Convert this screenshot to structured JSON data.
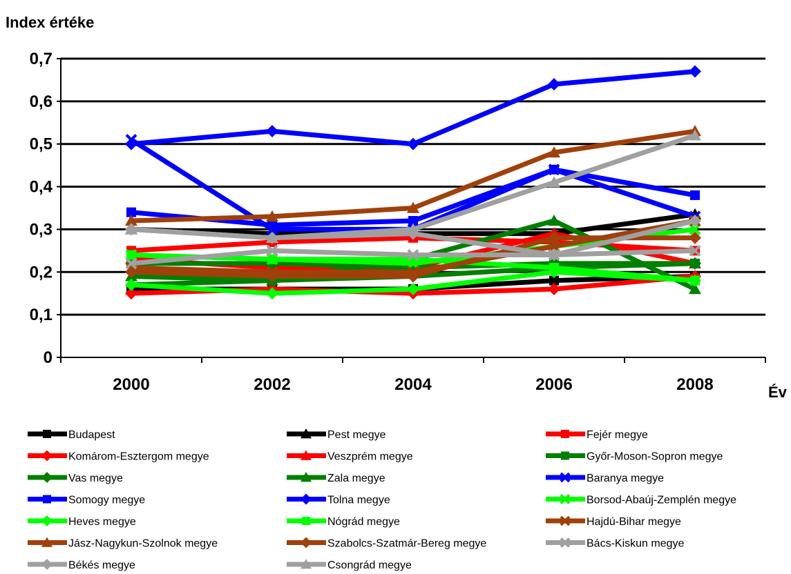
{
  "chart_data": {
    "type": "line",
    "ylabel": "Index értéke",
    "xlabel": "Év",
    "x": [
      "2000",
      "2002",
      "2004",
      "2006",
      "2008"
    ],
    "ylim": [
      0,
      0.7
    ],
    "yticks": [
      "0",
      "0,1",
      "0,2",
      "0,3",
      "0,4",
      "0,5",
      "0,6",
      "0,7"
    ],
    "grid": true,
    "legend_position": "bottom",
    "series": [
      {
        "name": "Budapest",
        "color": "#000000",
        "marker": "square",
        "values": [
          0.16,
          0.16,
          0.16,
          0.18,
          0.19
        ]
      },
      {
        "name": "Pest megye",
        "color": "#000000",
        "marker": "triangle",
        "values": [
          0.3,
          0.29,
          0.29,
          0.29,
          0.335
        ]
      },
      {
        "name": "Fejér megye",
        "color": "#ff0000",
        "marker": "square",
        "values": [
          0.25,
          0.27,
          0.28,
          0.27,
          0.25
        ]
      },
      {
        "name": "Komárom-Esztergom megye",
        "color": "#ff0000",
        "marker": "diamond",
        "values": [
          0.15,
          0.16,
          0.15,
          0.16,
          0.19
        ]
      },
      {
        "name": "Veszprém megye",
        "color": "#ff0000",
        "marker": "triangle",
        "values": [
          0.23,
          0.21,
          0.21,
          0.29,
          0.22
        ]
      },
      {
        "name": "Győr-Moson-Sopron megye",
        "color": "#008000",
        "marker": "square",
        "values": [
          0.22,
          0.22,
          0.21,
          0.22,
          0.22
        ]
      },
      {
        "name": "Vas megye",
        "color": "#008000",
        "marker": "diamond",
        "values": [
          0.17,
          0.18,
          0.19,
          0.21,
          0.22
        ]
      },
      {
        "name": "Zala megye",
        "color": "#008000",
        "marker": "triangle",
        "values": [
          0.19,
          0.18,
          0.23,
          0.32,
          0.16
        ]
      },
      {
        "name": "Baranya megye",
        "color": "#0000ff",
        "marker": "x",
        "values": [
          0.51,
          0.3,
          0.3,
          0.44,
          0.33
        ]
      },
      {
        "name": "Somogy megye",
        "color": "#0000ff",
        "marker": "square",
        "values": [
          0.34,
          0.31,
          0.32,
          0.44,
          0.38
        ]
      },
      {
        "name": "Tolna megye",
        "color": "#0000ff",
        "marker": "diamond",
        "values": [
          0.5,
          0.53,
          0.5,
          0.64,
          0.67
        ]
      },
      {
        "name": "Borsod-Abaúj-Zemplén megye",
        "color": "#00ff00",
        "marker": "x",
        "values": [
          0.24,
          0.23,
          0.22,
          0.26,
          0.3
        ]
      },
      {
        "name": "Heves megye",
        "color": "#00ff00",
        "marker": "diamond",
        "values": [
          0.17,
          0.15,
          0.16,
          0.2,
          0.18
        ]
      },
      {
        "name": "Nógrád megye",
        "color": "#00ff00",
        "marker": "square",
        "values": [
          0.24,
          0.23,
          0.23,
          0.21,
          0.18
        ]
      },
      {
        "name": "Hajdú-Bihar megye",
        "color": "#a0400a",
        "marker": "x",
        "values": [
          0.21,
          0.2,
          0.2,
          0.26,
          0.32
        ]
      },
      {
        "name": "Jász-Nagykun-Szolnok megye",
        "color": "#a0400a",
        "marker": "triangle",
        "values": [
          0.32,
          0.33,
          0.35,
          0.48,
          0.53
        ]
      },
      {
        "name": "Szabolcs-Szatmár-Bereg megye",
        "color": "#a0400a",
        "marker": "diamond",
        "values": [
          0.2,
          0.19,
          0.19,
          0.28,
          0.28
        ]
      },
      {
        "name": "Bács-Kiskun megye",
        "color": "#a0a0a0",
        "marker": "x",
        "values": [
          0.22,
          0.25,
          0.24,
          0.24,
          0.25
        ]
      },
      {
        "name": "Békés megye",
        "color": "#a0a0a0",
        "marker": "diamond",
        "values": [
          0.3,
          0.28,
          0.29,
          0.24,
          0.32
        ]
      },
      {
        "name": "Csongrád megye",
        "color": "#a0a0a0",
        "marker": "triangle",
        "values": [
          0.3,
          0.28,
          0.3,
          0.41,
          0.52
        ]
      }
    ]
  }
}
